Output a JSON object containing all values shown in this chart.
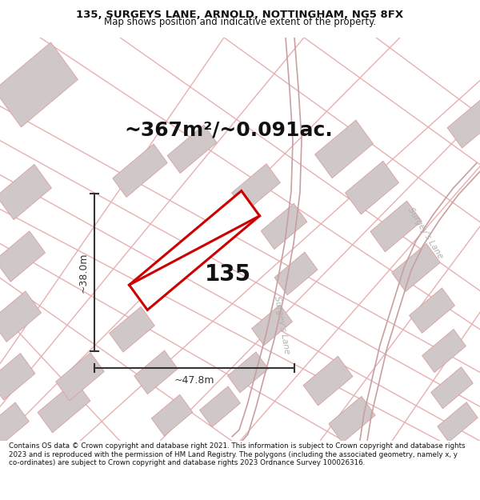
{
  "title_line1": "135, SURGEYS LANE, ARNOLD, NOTTINGHAM, NG5 8FX",
  "title_line2": "Map shows position and indicative extent of the property.",
  "area_label": "~367m²/~0.091ac.",
  "property_number": "135",
  "dim_width": "~47.8m",
  "dim_height": "~38.0m",
  "road_label_center": "Surgey's Lane",
  "road_label_right": "Surgey's Lane",
  "footer_text": "Contains OS data © Crown copyright and database right 2021. This information is subject to Crown copyright and database rights 2023 and is reproduced with the permission of HM Land Registry. The polygons (including the associated geometry, namely x, y co-ordinates) are subject to Crown copyright and database rights 2023 Ordnance Survey 100026316.",
  "map_bg": "#ffffff",
  "road_color": "#e8b0b0",
  "road_color2": "#c8a0a0",
  "building_fill": "#d0c8c8",
  "building_edge": "#d8a0a0",
  "property_color": "#cc0000",
  "dim_color": "#333333",
  "text_color": "#111111",
  "surgeys_lane_color": "#b0b0b0",
  "title_fontsize": 9.5,
  "subtitle_fontsize": 8.5,
  "area_fontsize": 18,
  "footer_fontsize": 6.3
}
